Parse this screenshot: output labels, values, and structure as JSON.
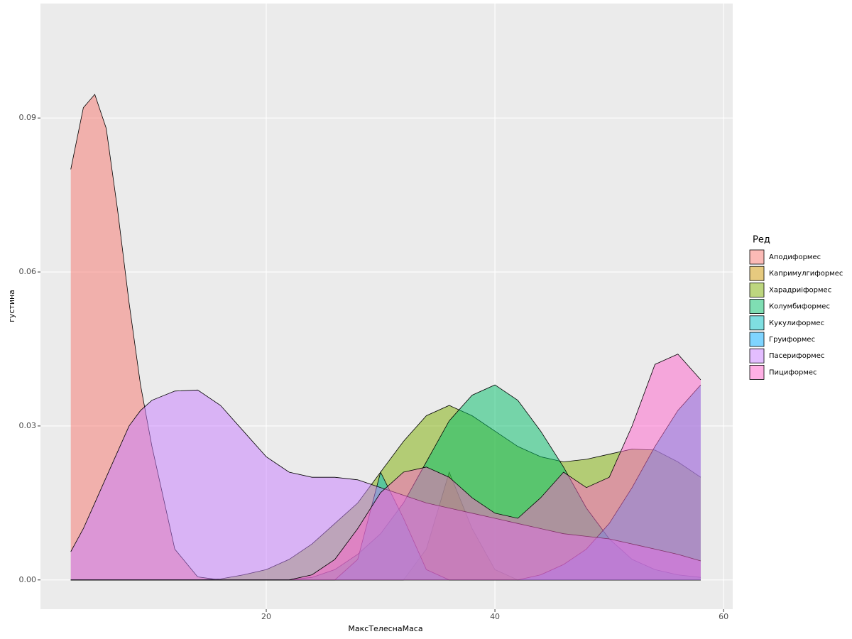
{
  "chart_data": {
    "type": "density",
    "x_label": "МаксТелеснаМаса",
    "y_label": "густина",
    "legend_title": "Ред",
    "xlim": [
      0.25,
      60.8
    ],
    "ylim": [
      -0.0057,
      0.1123
    ],
    "xticks": [
      20,
      40,
      60
    ],
    "yticks": [
      {
        "value": 0,
        "label": "0.00"
      },
      0.03,
      0.06,
      0.09
    ],
    "grid": true,
    "legend_position": "right",
    "alpha": 0.5,
    "x": [
      2.9,
      4,
      5,
      6,
      7,
      8,
      9,
      10,
      12,
      14,
      16,
      18,
      20,
      22,
      24,
      26,
      28,
      30,
      32,
      34,
      36,
      38,
      40,
      42,
      44,
      46,
      48,
      50,
      52,
      54,
      56,
      58
    ],
    "series": [
      {
        "name": "Аподиформес",
        "color": "#F8766D",
        "values": [
          0.08,
          0.092,
          0.0946,
          0.088,
          0.072,
          0.054,
          0.038,
          0.026,
          0.006,
          0.0006,
          0,
          0,
          0,
          0,
          0,
          0,
          0,
          0,
          0,
          0,
          0,
          0,
          0,
          0,
          0,
          0,
          0,
          0,
          0,
          0,
          0,
          0
        ]
      },
      {
        "name": "Капримулгиформес",
        "color": "#CD9600",
        "values": [
          0,
          0,
          0,
          0,
          0,
          0,
          0,
          0,
          0,
          0,
          0,
          0,
          0,
          0,
          0,
          0,
          0,
          0,
          0,
          0.006,
          0.021,
          0.01,
          0.002,
          0,
          0,
          0,
          0,
          0,
          0,
          0,
          0,
          0
        ]
      },
      {
        "name": "Харадриiформес",
        "color": "#7CAE00",
        "values": [
          0,
          0,
          0,
          0,
          0,
          0,
          0,
          0,
          0,
          0,
          0.0002,
          0.001,
          0.002,
          0.004,
          0.007,
          0.011,
          0.015,
          0.021,
          0.027,
          0.032,
          0.034,
          0.032,
          0.029,
          0.026,
          0.024,
          0.023,
          0.0235,
          0.0245,
          0.0255,
          0.0253,
          0.023,
          0.02
        ]
      },
      {
        "name": "Колумбиформес",
        "color": "#00BE67",
        "values": [
          0,
          0,
          0,
          0,
          0,
          0,
          0,
          0,
          0,
          0,
          0,
          0,
          0,
          0,
          0.0005,
          0.002,
          0.005,
          0.009,
          0.015,
          0.023,
          0.031,
          0.036,
          0.038,
          0.035,
          0.029,
          0.022,
          0.014,
          0.008,
          0.004,
          0.002,
          0.001,
          0.0005
        ]
      },
      {
        "name": "Кукулиформес",
        "color": "#00BFC4",
        "values": [
          0,
          0,
          0,
          0,
          0,
          0,
          0,
          0,
          0,
          0,
          0,
          0,
          0,
          0,
          0,
          0,
          0.004,
          0.021,
          0.012,
          0.002,
          0,
          0,
          0,
          0,
          0,
          0,
          0,
          0,
          0,
          0,
          0,
          0
        ]
      },
      {
        "name": "Груиформес",
        "color": "#00A9FF",
        "values": [
          0,
          0,
          0,
          0,
          0,
          0,
          0,
          0,
          0,
          0,
          0,
          0,
          0,
          0,
          0,
          0,
          0,
          0,
          0,
          0,
          0,
          0,
          0,
          0,
          0.001,
          0.003,
          0.006,
          0.011,
          0.018,
          0.026,
          0.033,
          0.038
        ]
      },
      {
        "name": "Пасериформес",
        "color": "#C77CFF",
        "values": [
          0.0055,
          0.01,
          0.015,
          0.02,
          0.025,
          0.03,
          0.033,
          0.035,
          0.0368,
          0.037,
          0.034,
          0.029,
          0.024,
          0.021,
          0.02,
          0.02,
          0.0195,
          0.018,
          0.0165,
          0.015,
          0.014,
          0.013,
          0.012,
          0.011,
          0.01,
          0.009,
          0.0085,
          0.008,
          0.007,
          0.006,
          0.005,
          0.0037
        ]
      },
      {
        "name": "Пициформес",
        "color": "#FF61CC",
        "values": [
          0,
          0,
          0,
          0,
          0,
          0,
          0,
          0,
          0,
          0,
          0,
          0,
          0,
          0,
          0.001,
          0.004,
          0.01,
          0.017,
          0.021,
          0.022,
          0.02,
          0.016,
          0.013,
          0.012,
          0.016,
          0.021,
          0.018,
          0.02,
          0.03,
          0.042,
          0.044,
          0.039
        ]
      }
    ]
  }
}
